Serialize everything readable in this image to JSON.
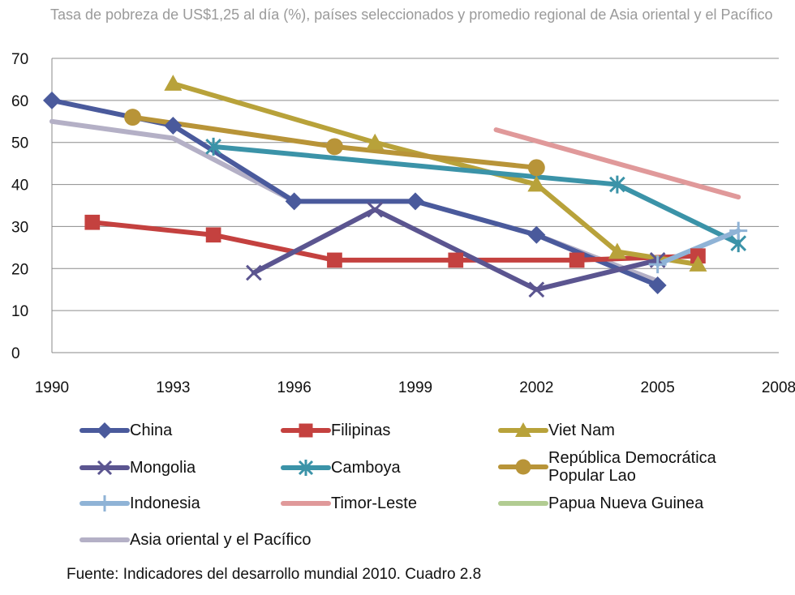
{
  "page_title": "Tasa de pobreza de US$1,25 al día (%), países seleccionados y promedio regional de Asia oriental y el Pacífico",
  "source": "Fuente: Indicadores del desarrollo mundial 2010. Cuadro 2.8",
  "chart_data": {
    "type": "line",
    "title": "Tasa de pobreza de US$1,25 al día (%), países seleccionados y promedio regional de Asia oriental y el Pacífico",
    "xlabel": "",
    "ylabel": "",
    "xlim": [
      1990,
      2008
    ],
    "ylim": [
      0,
      70
    ],
    "x_ticks": [
      "1990",
      "1993",
      "1996",
      "1999",
      "2002",
      "2005",
      "2008"
    ],
    "y_ticks": [
      "0",
      "10",
      "20",
      "30",
      "40",
      "50",
      "60",
      "70"
    ],
    "grid": true,
    "legend_position": "bottom",
    "series": [
      {
        "name": "China",
        "color": "#4a5a9c",
        "marker": "diamond",
        "points": [
          [
            1990,
            60
          ],
          [
            1993,
            54
          ],
          [
            1996,
            36
          ],
          [
            1999,
            36
          ],
          [
            2002,
            28
          ],
          [
            2005,
            16
          ]
        ]
      },
      {
        "name": "Filipinas",
        "color": "#c4413f",
        "marker": "square",
        "points": [
          [
            1991,
            31
          ],
          [
            1994,
            28
          ],
          [
            1997,
            22
          ],
          [
            2000,
            22
          ],
          [
            2003,
            22
          ],
          [
            2006,
            23
          ]
        ]
      },
      {
        "name": "Viet Nam",
        "color": "#b8a23a",
        "marker": "triangle",
        "points": [
          [
            1993,
            64
          ],
          [
            1998,
            50
          ],
          [
            2002,
            40
          ],
          [
            2004,
            24
          ],
          [
            2006,
            21
          ]
        ]
      },
      {
        "name": "Mongolia",
        "color": "#5b5590",
        "marker": "x",
        "points": [
          [
            1995,
            19
          ],
          [
            1998,
            34
          ],
          [
            2002,
            15
          ],
          [
            2005,
            22
          ]
        ]
      },
      {
        "name": "Camboya",
        "color": "#3b93a8",
        "marker": "star",
        "points": [
          [
            1994,
            49
          ],
          [
            2004,
            40
          ],
          [
            2007,
            26
          ]
        ]
      },
      {
        "name": "República Democrática Popular Lao",
        "color": "#b89438",
        "marker": "circle",
        "points": [
          [
            1992,
            56
          ],
          [
            1997,
            49
          ],
          [
            2002,
            44
          ]
        ]
      },
      {
        "name": "Indonesia",
        "color": "#8fb3d6",
        "marker": "plus",
        "points": [
          [
            2005,
            21
          ],
          [
            2007,
            29
          ]
        ]
      },
      {
        "name": "Timor-Leste",
        "color": "#e0999a",
        "marker": "none",
        "points": [
          [
            2001,
            53
          ],
          [
            2007,
            37
          ]
        ]
      },
      {
        "name": "Papua Nueva Guinea",
        "color": "#b2cc92",
        "marker": "none",
        "points": []
      },
      {
        "name": "Asia oriental y el Pacífico",
        "color": "#b4b0c6",
        "marker": "none",
        "points": [
          [
            1990,
            55
          ],
          [
            1993,
            51
          ],
          [
            1996,
            36
          ],
          [
            1999,
            36
          ],
          [
            2002,
            28
          ],
          [
            2005,
            17
          ]
        ]
      }
    ]
  }
}
